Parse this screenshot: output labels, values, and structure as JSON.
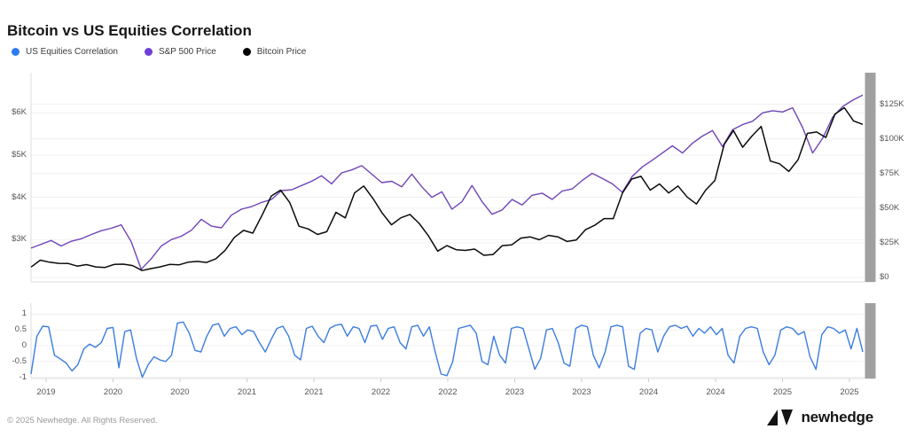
{
  "title": "Bitcoin vs US Equities Correlation",
  "legend": [
    {
      "label": "US Equities Correlation",
      "color": "#2e7cf2"
    },
    {
      "label": "S&P 500 Price",
      "color": "#6c3fd8"
    },
    {
      "label": "Bitcoin Price",
      "color": "#000000"
    }
  ],
  "footer": {
    "copyright": "© 2025 Newhedge. All Rights Reserved.",
    "brand": "newhedge"
  },
  "scrollbar_color": "#a0a0a0",
  "chart_data": {
    "type": "line",
    "title": "Bitcoin vs US Equities Correlation",
    "legend_position": "top-left",
    "grid": true,
    "x_range_note": "May 2019 to Aug 2025, two ticks per year (Jan/Jul)",
    "x_ticks": [
      "2019",
      "2020",
      "2020",
      "2021",
      "2021",
      "2022",
      "2022",
      "2023",
      "2023",
      "2024",
      "2024",
      "2025",
      "2025"
    ],
    "panels": [
      {
        "name": "prices",
        "left_axis": {
          "label": "S&P 500 Price",
          "range": [
            2.0,
            6.95
          ],
          "ticks": [
            {
              "label": "$6K",
              "v": 6
            },
            {
              "label": "$5K",
              "v": 5
            },
            {
              "label": "$4K",
              "v": 4
            },
            {
              "label": "$3K",
              "v": 3
            }
          ]
        },
        "right_axis": {
          "label": "Bitcoin Price",
          "range": [
            -3.2,
            147.8
          ],
          "ticks": [
            {
              "label": "$125K",
              "v": 125
            },
            {
              "label": "$100K",
              "v": 100
            },
            {
              "label": "$75K",
              "v": 75
            },
            {
              "label": "$50K",
              "v": 50
            },
            {
              "label": "$25K",
              "v": 25
            },
            {
              "label": "$0",
              "v": 0
            }
          ]
        },
        "series": [
          {
            "name": "S&P 500 Price",
            "axis": "left",
            "color": "#7144b8",
            "unit": "$K",
            "values": [
              2.8,
              2.89,
              2.98,
              2.85,
              2.96,
              3.02,
              3.12,
              3.21,
              3.27,
              3.35,
              2.95,
              2.3,
              2.55,
              2.85,
              3.0,
              3.08,
              3.22,
              3.48,
              3.32,
              3.28,
              3.58,
              3.72,
              3.78,
              3.88,
              3.95,
              4.16,
              4.18,
              4.28,
              4.38,
              4.51,
              4.32,
              4.58,
              4.65,
              4.75,
              4.55,
              4.35,
              4.38,
              4.25,
              4.55,
              4.25,
              4.0,
              4.13,
              3.72,
              3.9,
              4.28,
              3.9,
              3.6,
              3.7,
              3.95,
              3.82,
              4.05,
              4.1,
              3.95,
              4.15,
              4.2,
              4.4,
              4.57,
              4.45,
              4.32,
              4.12,
              4.5,
              4.72,
              4.88,
              5.05,
              5.22,
              5.05,
              5.28,
              5.45,
              5.58,
              5.2,
              5.6,
              5.72,
              5.8,
              6.0,
              6.05,
              6.02,
              6.12,
              5.65,
              5.05,
              5.4,
              5.9,
              6.15,
              6.3,
              6.42
            ]
          },
          {
            "name": "Bitcoin Price",
            "axis": "right",
            "color": "#0b0b0b",
            "unit": "$K",
            "values": [
              7.5,
              12.5,
              11.0,
              10.2,
              10.1,
              8.2,
              9.3,
              7.6,
              7.2,
              9.4,
              9.6,
              8.6,
              5.0,
              6.4,
              7.7,
              9.4,
              9.1,
              11.0,
              11.6,
              10.8,
              13.5,
              19.6,
              28.9,
              34.0,
              32.0,
              45.0,
              58.8,
              63.0,
              54.0,
              37.0,
              35.0,
              31.0,
              33.0,
              47.0,
              43.0,
              61.0,
              66.0,
              57.0,
              46.5,
              38.0,
              43.0,
              45.5,
              39.0,
              30.0,
              19.0,
              23.0,
              20.0,
              19.5,
              20.5,
              16.0,
              16.6,
              23.0,
              23.5,
              28.4,
              29.3,
              27.2,
              30.4,
              29.3,
              26.0,
              27.0,
              34.5,
              37.7,
              42.5,
              42.5,
              61.0,
              71.0,
              73.0,
              63.0,
              67.5,
              61.0,
              66.0,
              58.0,
              53.0,
              63.0,
              70.0,
              96.0,
              106.0,
              94.0,
              102.0,
              109.0,
              84.0,
              82.0,
              76.5,
              85.0,
              104.0,
              105.0,
              101.0,
              118.0,
              122.5,
              113.0,
              110.5
            ]
          }
        ]
      },
      {
        "name": "correlation",
        "left_axis": {
          "label": "US Equities Correlation",
          "range": [
            -1.04,
            1.35
          ],
          "ticks": [
            {
              "label": "1",
              "v": 1
            },
            {
              "label": "0.5",
              "v": 0.5
            },
            {
              "label": "0",
              "v": 0
            },
            {
              "label": "-0.5",
              "v": -0.5
            },
            {
              "label": "-1",
              "v": -1
            }
          ]
        },
        "series": [
          {
            "name": "US Equities Correlation",
            "axis": "left",
            "color": "#3b7de0",
            "unit": "",
            "values": [
              -0.9,
              0.3,
              0.62,
              0.6,
              -0.3,
              -0.42,
              -0.55,
              -0.8,
              -0.6,
              -0.1,
              0.05,
              -0.05,
              0.1,
              0.55,
              0.58,
              -0.7,
              0.45,
              0.5,
              -0.4,
              -1.0,
              -0.6,
              -0.35,
              -0.45,
              -0.5,
              -0.3,
              0.72,
              0.75,
              0.4,
              -0.15,
              -0.2,
              0.3,
              0.65,
              0.7,
              0.3,
              0.55,
              0.6,
              0.35,
              0.5,
              0.45,
              0.1,
              -0.2,
              0.2,
              0.55,
              0.62,
              0.3,
              -0.3,
              -0.45,
              0.55,
              0.62,
              0.3,
              0.1,
              0.55,
              0.65,
              0.68,
              0.3,
              0.6,
              0.55,
              0.1,
              0.62,
              0.65,
              0.2,
              0.55,
              0.6,
              0.1,
              -0.1,
              0.6,
              0.65,
              0.3,
              0.6,
              -0.2,
              -0.9,
              -0.95,
              -0.5,
              0.55,
              0.6,
              0.65,
              0.4,
              -0.5,
              -0.6,
              0.3,
              -0.3,
              -0.55,
              0.55,
              0.6,
              0.55,
              -0.1,
              -0.75,
              -0.4,
              0.5,
              0.55,
              0.1,
              -0.55,
              -0.65,
              0.55,
              0.65,
              0.6,
              -0.3,
              -0.7,
              -0.2,
              0.6,
              0.65,
              0.6,
              -0.65,
              -0.75,
              0.4,
              0.55,
              0.5,
              -0.2,
              0.3,
              0.6,
              0.65,
              0.55,
              0.62,
              0.3,
              0.55,
              0.4,
              0.6,
              0.35,
              0.55,
              -0.3,
              -0.55,
              0.3,
              0.55,
              0.6,
              0.55,
              -0.2,
              -0.6,
              -0.3,
              0.5,
              0.6,
              0.55,
              0.35,
              0.45,
              -0.35,
              -0.75,
              0.35,
              0.6,
              0.55,
              0.4,
              0.5,
              -0.1,
              0.55,
              -0.2
            ]
          }
        ]
      }
    ]
  }
}
